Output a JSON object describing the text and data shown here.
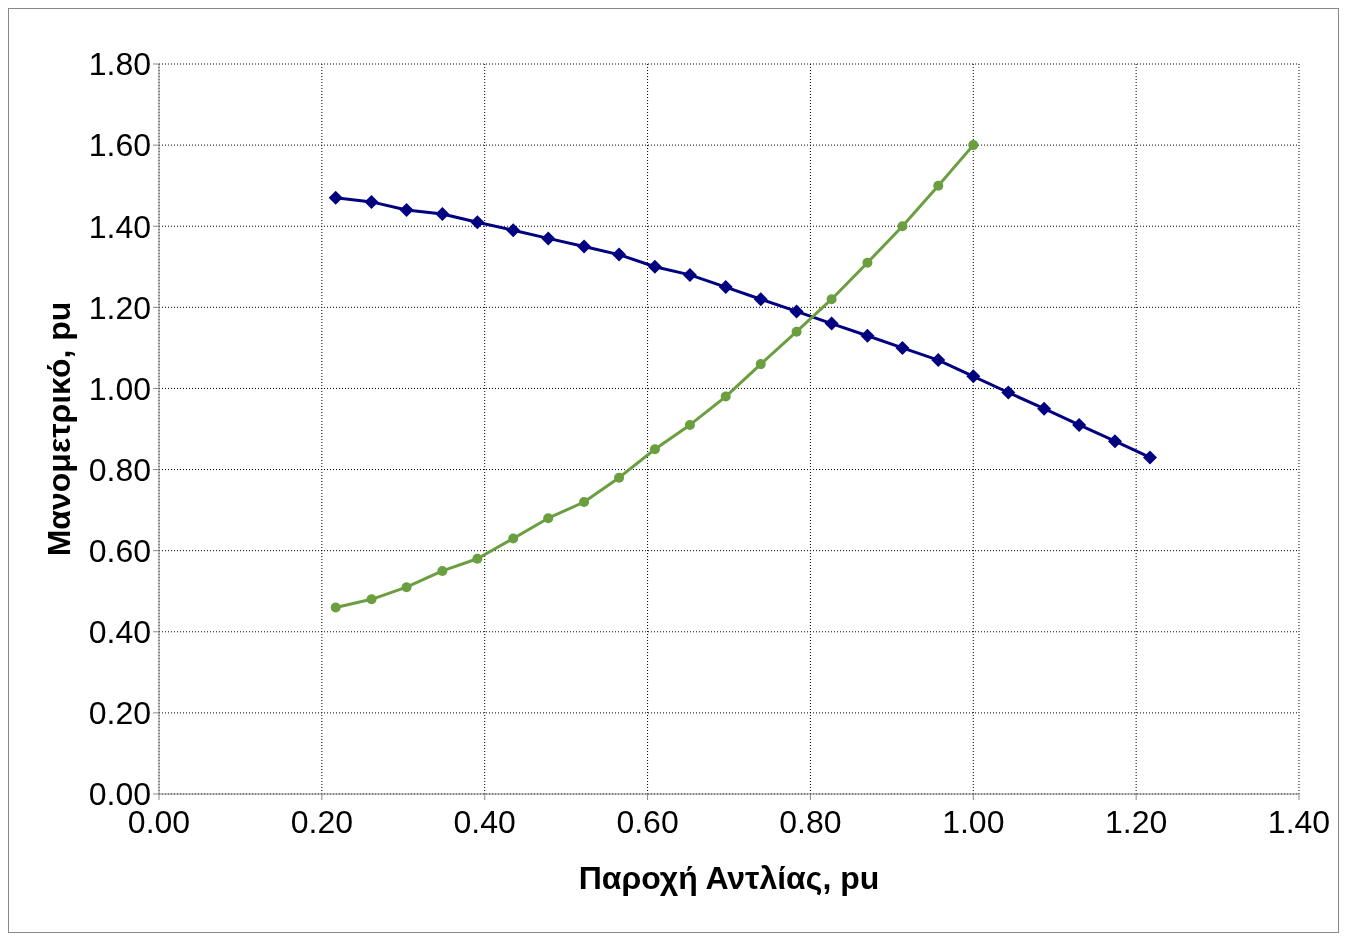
{
  "chart_data": {
    "type": "line",
    "xlabel": "Παροχή Αντλίας, pu",
    "ylabel": "Μανομετρικό, pu",
    "xlim": [
      0,
      1.4
    ],
    "xticks": [
      {
        "value": 0,
        "label": "0.00"
      },
      {
        "value": 0.2,
        "label": "0.20"
      },
      {
        "value": 0.4,
        "label": "0.40"
      },
      {
        "value": 0.6,
        "label": "0.60"
      },
      {
        "value": 0.8,
        "label": "0.80"
      },
      {
        "value": 1,
        "label": "1.00"
      },
      {
        "value": 1.2,
        "label": "1.20"
      },
      {
        "value": 1.4,
        "label": "1.40"
      }
    ],
    "ylim": [
      0,
      1.8
    ],
    "yticks": [
      {
        "value": 0,
        "label": "0.00"
      },
      {
        "value": 0.2,
        "label": "0.20"
      },
      {
        "value": 0.4,
        "label": "0.40"
      },
      {
        "value": 0.6,
        "label": "0.60"
      },
      {
        "value": 0.8,
        "label": "0.80"
      },
      {
        "value": 1,
        "label": "1.00"
      },
      {
        "value": 1.2,
        "label": "1.20"
      },
      {
        "value": 1.4,
        "label": "1.40"
      },
      {
        "value": 1.6,
        "label": "1.60"
      },
      {
        "value": 1.8,
        "label": "1.80"
      }
    ],
    "grid": true,
    "line_style": "solid",
    "series": [
      {
        "color": "#000080",
        "marker": "diamond",
        "x": [
          0.217,
          0.261,
          0.304,
          0.348,
          0.391,
          0.435,
          0.478,
          0.522,
          0.565,
          0.609,
          0.652,
          0.696,
          0.739,
          0.783,
          0.826,
          0.87,
          0.913,
          0.957,
          1,
          1.043,
          1.087,
          1.13,
          1.174,
          1.217
        ],
        "values": [
          1.47,
          1.46,
          1.44,
          1.43,
          1.41,
          1.39,
          1.37,
          1.35,
          1.33,
          1.3,
          1.28,
          1.25,
          1.22,
          1.19,
          1.16,
          1.13,
          1.1,
          1.07,
          1.03,
          0.99,
          0.95,
          0.91,
          0.87,
          0.83
        ]
      },
      {
        "color": "#6a9e3f",
        "marker": "circle",
        "x": [
          0.217,
          0.261,
          0.304,
          0.348,
          0.391,
          0.435,
          0.478,
          0.522,
          0.565,
          0.609,
          0.652,
          0.696,
          0.739,
          0.783,
          0.826,
          0.87,
          0.913,
          0.957,
          1
        ],
        "values": [
          0.46,
          0.48,
          0.51,
          0.55,
          0.58,
          0.63,
          0.68,
          0.72,
          0.78,
          0.85,
          0.91,
          0.98,
          1.06,
          1.14,
          1.22,
          1.31,
          1.4,
          1.5,
          1.6
        ]
      }
    ]
  }
}
